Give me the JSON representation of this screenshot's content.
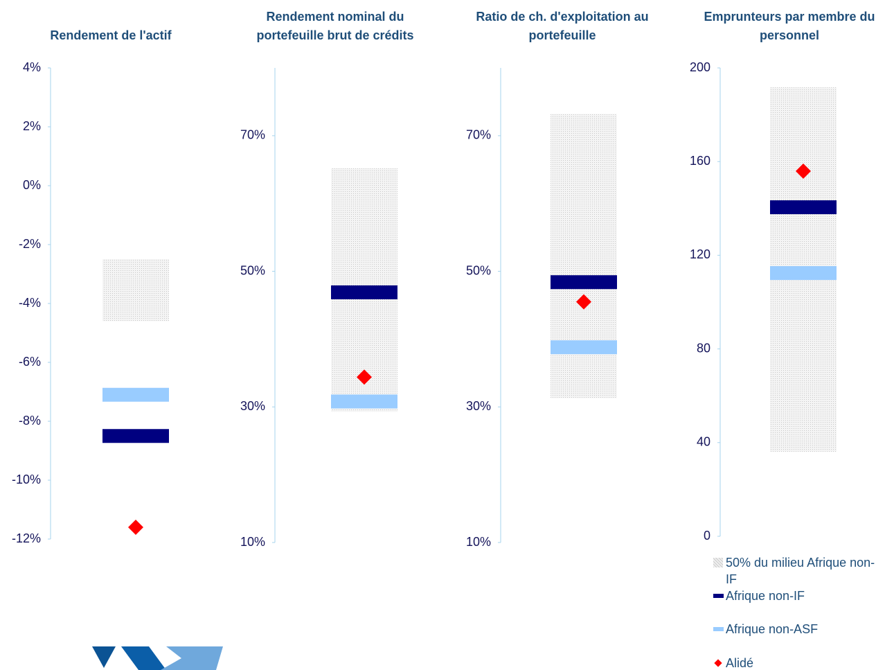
{
  "legend": [
    {
      "name": "50% du milieu Afrique non-IF",
      "color": "#d9d9d9"
    },
    {
      "name": "Afrique non-IF",
      "color": "#000080"
    },
    {
      "name": "Afrique non-ASF",
      "color": "#99ccff"
    },
    {
      "name": "Alidé",
      "color": "#ff0000"
    }
  ],
  "chart_data": [
    {
      "type": "range",
      "title": [
        "Rendement de l'actif"
      ],
      "range": [
        -4.6,
        -2.5
      ],
      "values": [
        -8.5,
        -7.1,
        -11.6
      ],
      "ylim": [
        -12,
        4
      ],
      "yticks": [
        {
          "value": -12,
          "label": "-12%"
        },
        {
          "value": -10,
          "label": "-10%"
        },
        {
          "value": -8,
          "label": "-8%"
        },
        {
          "value": -6,
          "label": "-6%"
        },
        {
          "value": -4,
          "label": "-4%"
        },
        {
          "value": -2,
          "label": "-2%"
        },
        {
          "value": 0,
          "label": "0%"
        },
        {
          "value": 2,
          "label": "2%"
        },
        {
          "value": 4,
          "label": "4%"
        }
      ]
    },
    {
      "type": "range",
      "title": [
        "Rendement nominal du",
        "portefeuille brut de crédits"
      ],
      "range": [
        29.3,
        65.2
      ],
      "values": [
        46.9,
        30.8,
        34.4
      ],
      "ylim": [
        10,
        80
      ],
      "yticks": [
        {
          "value": 10,
          "label": "10%"
        },
        {
          "value": 30,
          "label": "30%"
        },
        {
          "value": 50,
          "label": "50%"
        },
        {
          "value": 70,
          "label": "70%"
        }
      ]
    },
    {
      "type": "range",
      "title": [
        "Ratio de ch. d'exploitation au",
        "portefeuille"
      ],
      "range": [
        31.3,
        73.2
      ],
      "values": [
        48.4,
        38.8,
        45.5
      ],
      "ylim": [
        10,
        80
      ],
      "yticks": [
        {
          "value": 10,
          "label": "10%"
        },
        {
          "value": 30,
          "label": "30%"
        },
        {
          "value": 50,
          "label": "50%"
        },
        {
          "value": 70,
          "label": "70%"
        }
      ]
    },
    {
      "type": "range",
      "title": [
        "Emprunteurs par membre du",
        "personnel"
      ],
      "range": [
        36.1,
        191.7
      ],
      "values": [
        140.5,
        112.4,
        155.9
      ],
      "ylim": [
        0,
        200
      ],
      "yticks": [
        0,
        40,
        80,
        120,
        160,
        200
      ]
    }
  ]
}
